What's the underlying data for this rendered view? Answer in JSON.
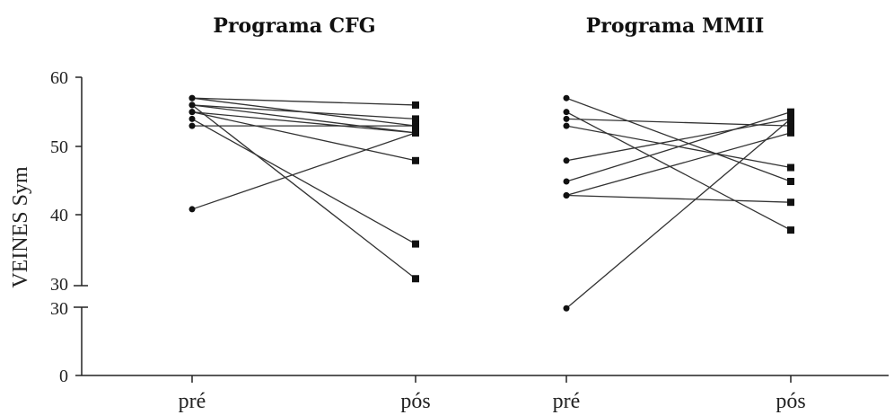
{
  "chart_data": {
    "type": "line",
    "ylabel": "VEINES Sym",
    "yticks_upper": [
      "60",
      "50",
      "40",
      "30"
    ],
    "yticks_lower": [
      "30",
      "0"
    ],
    "panels": [
      {
        "title": "Programa CFG",
        "xticks": [
          "pré",
          "pós"
        ],
        "pairs": [
          [
            57,
            56
          ],
          [
            57,
            53
          ],
          [
            56,
            54
          ],
          [
            56,
            52
          ],
          [
            55,
            48
          ],
          [
            54,
            36
          ],
          [
            53,
            53
          ],
          [
            56,
            31
          ],
          [
            55,
            52
          ],
          [
            41,
            52
          ]
        ]
      },
      {
        "title": "Programa MMII",
        "xticks": [
          "pré",
          "pós"
        ],
        "pairs": [
          [
            57,
            45
          ],
          [
            55,
            38
          ],
          [
            54,
            53
          ],
          [
            53,
            47
          ],
          [
            48,
            54
          ],
          [
            45,
            55
          ],
          [
            43,
            52
          ],
          [
            43,
            42
          ],
          [
            29.5,
            54
          ]
        ]
      }
    ]
  }
}
